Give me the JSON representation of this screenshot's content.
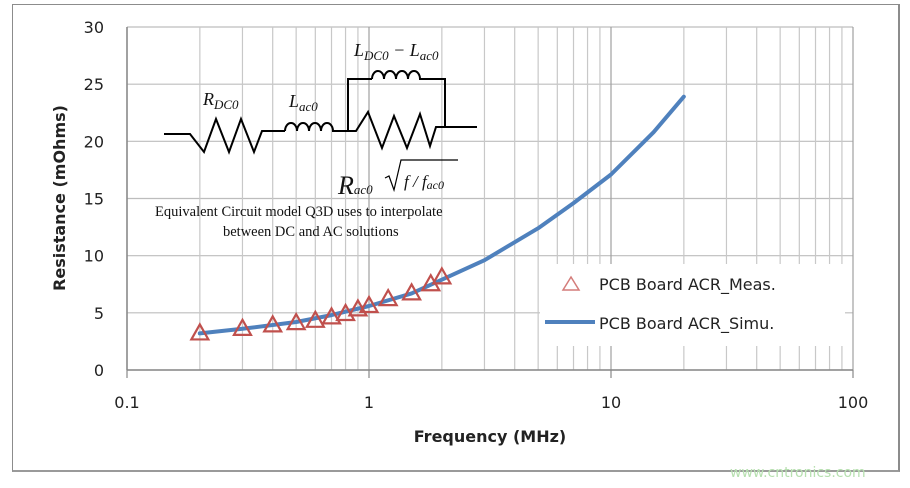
{
  "chart_data": {
    "type": "scatter",
    "xlabel": "Frequency (MHz)",
    "ylabel": "Resistance (mOhms)",
    "xscale": "log",
    "xlim": [
      0.1,
      100
    ],
    "ylim": [
      0,
      30
    ],
    "x_ticks": [
      "0.1",
      "1",
      "10",
      "100"
    ],
    "y_ticks": [
      "0",
      "5",
      "10",
      "15",
      "20",
      "25",
      "30"
    ],
    "grid": true,
    "legend_placement": "right",
    "series": [
      {
        "name": "PCB Board ACR_Meas.",
        "type": "scatter",
        "marker": "triangle",
        "color": "#c0504d",
        "x": [
          0.2,
          0.3,
          0.4,
          0.5,
          0.6,
          0.7,
          0.8,
          0.9,
          1.0,
          1.2,
          1.5,
          1.8,
          2.0
        ],
        "y": [
          3.2,
          3.6,
          3.9,
          4.1,
          4.3,
          4.6,
          4.9,
          5.3,
          5.6,
          6.2,
          6.7,
          7.5,
          8.1
        ]
      },
      {
        "name": "PCB Board ACR_Simu.",
        "type": "line",
        "color": "#4f81bd",
        "x": [
          0.2,
          0.3,
          0.5,
          0.7,
          1,
          1.5,
          2,
          3,
          5,
          7,
          10,
          15,
          20
        ],
        "y": [
          3.2,
          3.6,
          4.2,
          4.8,
          5.6,
          6.7,
          7.9,
          9.6,
          12.4,
          14.6,
          17.1,
          20.8,
          23.9
        ]
      }
    ],
    "annotations": {
      "r_dc0": "R",
      "r_dc0_sub": "DC0",
      "l_ac0": "L",
      "l_ac0_sub": "ac0",
      "l_diff_a": "L",
      "l_diff_a_sub": "DC0",
      "l_diff_minus": " − L",
      "l_diff_b_sub": "ac0",
      "r_ac0": "R",
      "r_ac0_sub": "ac0",
      "sqrt_expr": "f / f",
      "sqrt_expr_sub": "ac0",
      "caption_line1": "Equivalent Circuit model  Q3D uses to interpolate",
      "caption_line2": "between DC and AC solutions"
    }
  },
  "watermark": "www.cntronics.com"
}
